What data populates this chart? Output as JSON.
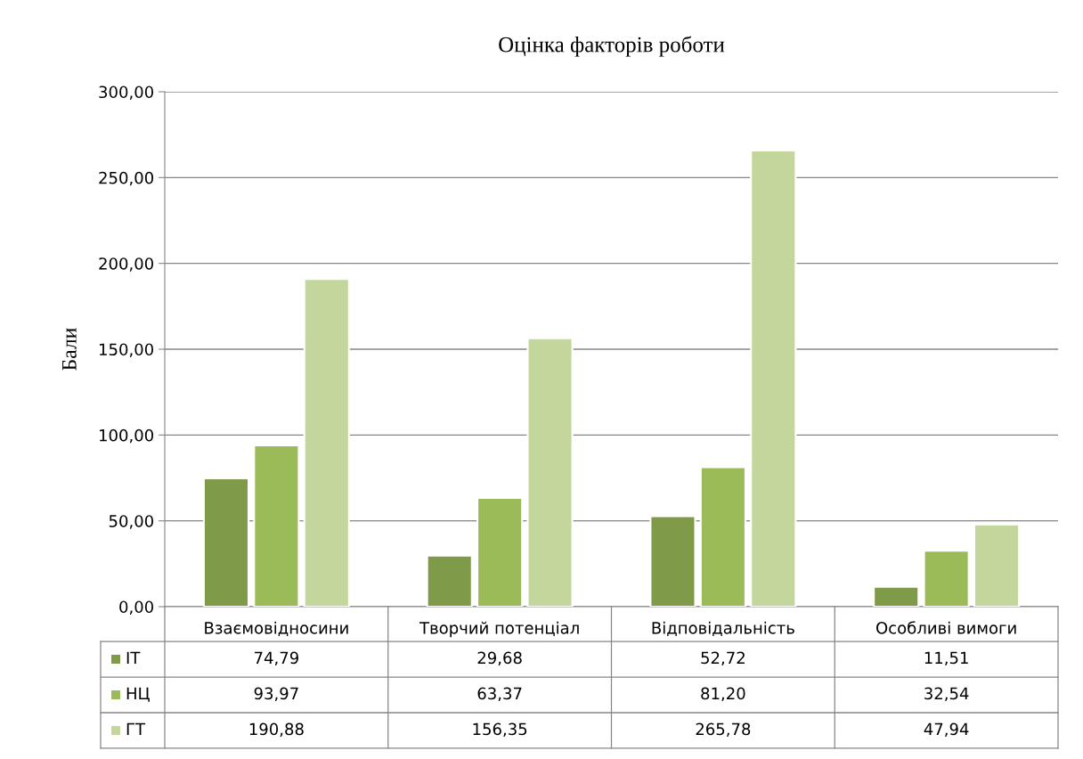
{
  "chart_data": {
    "type": "bar",
    "title": "Оцінка факторів роботи",
    "ylabel": "Бали",
    "categories": [
      "Взаємовідносини",
      "Творчий потенціал",
      "Відповідальність",
      "Особливі вимоги"
    ],
    "series": [
      {
        "name": "ІТ",
        "color": "#7f9a48",
        "values": [
          74.79,
          29.68,
          52.72,
          11.51
        ],
        "value_labels": [
          "74,79",
          "29,68",
          "52,72",
          "11,51"
        ]
      },
      {
        "name": "НЦ",
        "color": "#9bbb59",
        "values": [
          93.97,
          63.37,
          81.2,
          32.54
        ],
        "value_labels": [
          "93,97",
          "63,37",
          "81,20",
          "32,54"
        ]
      },
      {
        "name": "ГТ",
        "color": "#c3d69b",
        "values": [
          190.88,
          156.35,
          265.78,
          47.94
        ],
        "value_labels": [
          "190,88",
          "156,35",
          "265,78",
          "47,94"
        ]
      }
    ],
    "ylim": [
      0,
      300
    ],
    "yticks": [
      {
        "value": 0,
        "label": "0,00"
      },
      {
        "value": 50,
        "label": "50,00"
      },
      {
        "value": 100,
        "label": "100,00"
      },
      {
        "value": 150,
        "label": "150,00"
      },
      {
        "value": 200,
        "label": "200,00"
      },
      {
        "value": 250,
        "label": "250,00"
      },
      {
        "value": 300,
        "label": "300,00"
      }
    ],
    "grid": "y",
    "legend": "bottom"
  }
}
